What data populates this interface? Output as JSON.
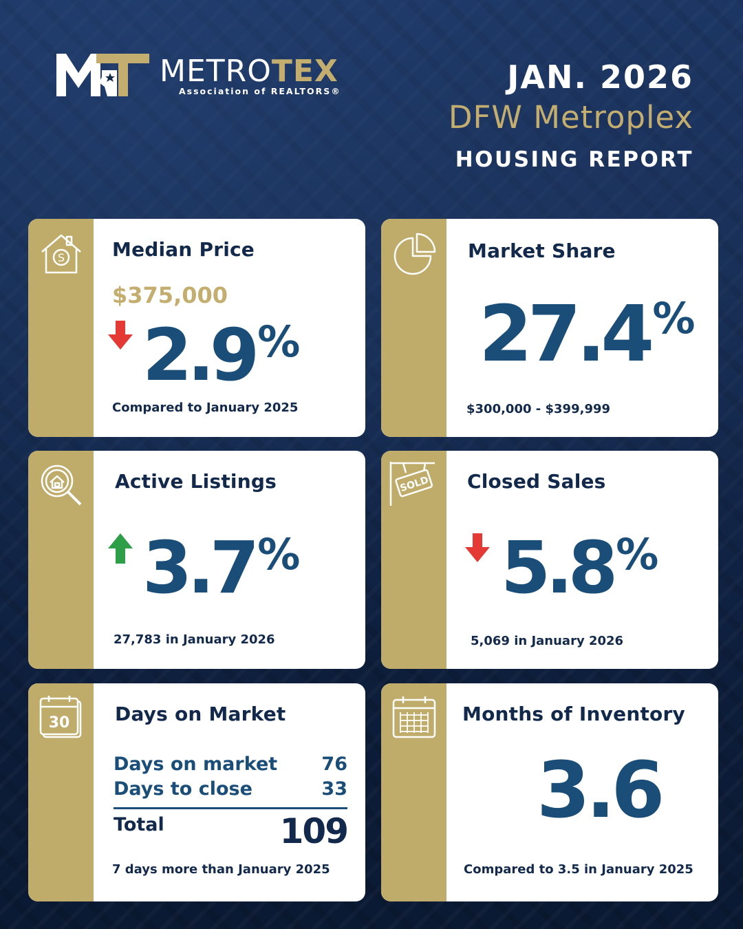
{
  "header": {
    "logo": {
      "word_light": "METRO",
      "word_bold": "TEX",
      "subtitle": "Association of REALTORS®"
    },
    "date": "JAN. 2026",
    "region": "DFW Metroplex",
    "report": "HOUSING REPORT"
  },
  "colors": {
    "navy": "#12294b",
    "stat_blue": "#1a4e79",
    "gold": "#c0ac6a",
    "down_red": "#e53935",
    "up_green": "#2e9e48"
  },
  "cards": [
    {
      "icon": "house-dollar-icon",
      "title": "Median Price",
      "price": "$375,000",
      "direction": "down",
      "value": "2.9",
      "unit": "%",
      "note": "Compared to January 2025"
    },
    {
      "icon": "pie-chart-icon",
      "title": "Market Share",
      "value": "27.4",
      "unit": "%",
      "note": "$300,000 - $399,999"
    },
    {
      "icon": "house-search-icon",
      "title": "Active Listings",
      "direction": "up",
      "value": "3.7",
      "unit": "%",
      "note": "27,783 in January 2026"
    },
    {
      "icon": "sold-sign-icon",
      "title": "Closed Sales",
      "direction": "down",
      "value": "5.8",
      "unit": "%",
      "note": "5,069 in January 2026"
    },
    {
      "icon": "calendar-30-icon",
      "title": "Days on Market",
      "rows": [
        {
          "label": "Days on market",
          "value": "76"
        },
        {
          "label": "Days to close",
          "value": "33"
        }
      ],
      "total_label": "Total",
      "total_value": "109",
      "note": "7 days more than January 2025"
    },
    {
      "icon": "calendar-grid-icon",
      "title": "Months of Inventory",
      "value": "3.6",
      "note": "Compared to 3.5 in January 2025"
    }
  ],
  "icon_text": {
    "calendar_day": "30",
    "sold_sign": "SOLD"
  }
}
